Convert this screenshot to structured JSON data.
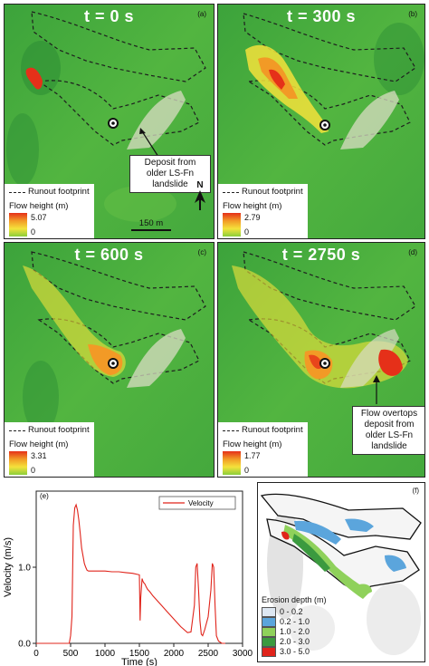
{
  "panels": [
    {
      "id": "a",
      "time": "t = 0 s",
      "letter": "(a)",
      "max": "5.07",
      "min": "0"
    },
    {
      "id": "b",
      "time": "t = 300 s",
      "letter": "(b)",
      "max": "2.79",
      "min": "0"
    },
    {
      "id": "c",
      "time": "t = 600 s",
      "letter": "(c)",
      "max": "3.31",
      "min": "0"
    },
    {
      "id": "d",
      "time": "t = 2750 s",
      "letter": "(d)",
      "max": "1.77",
      "min": "0"
    }
  ],
  "legend": {
    "runout": "Runout footprint",
    "flow_height": "Flow height (m)"
  },
  "callouts": {
    "deposit_a": [
      "Deposit from",
      "older LS-Fn",
      "landslide"
    ],
    "deposit_d": [
      "Flow overtops",
      "deposit from",
      "older LS-Fn",
      "landslide"
    ]
  },
  "scale_label": "150 m",
  "north_label": "N",
  "panel_e_letter": "(e)",
  "panel_f_letter": "(f)",
  "colors": {
    "terrain": "#4caf3a",
    "flow_high": "#e53019",
    "flow_mid": "#f29a26",
    "flow_low": "#f4e23b"
  },
  "chart_data": {
    "type": "line",
    "title": "",
    "xlabel": "Time (s)",
    "ylabel": "Velocity (m/s)",
    "xlim": [
      0,
      3000
    ],
    "ylim": [
      0,
      2.0
    ],
    "xticks": [
      0,
      500,
      1000,
      1500,
      2000,
      2500,
      3000
    ],
    "xtick_labels": [
      "0",
      "500",
      "1000",
      "1500",
      "2000",
      "2500",
      "3000"
    ],
    "yticks": [
      0,
      1.0
    ],
    "ytick_labels": [
      "0.0",
      "1.0"
    ],
    "legend_position": "top-right",
    "series": [
      {
        "name": "Velocity",
        "color": "#e0241b",
        "x": [
          0,
          480,
          500,
          520,
          540,
          560,
          580,
          600,
          620,
          640,
          660,
          680,
          700,
          720,
          740,
          760,
          780,
          800,
          850,
          900,
          1000,
          1100,
          1200,
          1300,
          1400,
          1500,
          1510,
          1520,
          1540,
          1550,
          1560,
          1580,
          1600,
          1620,
          1650,
          1700,
          1800,
          1900,
          2000,
          2100,
          2200,
          2250,
          2300,
          2320,
          2340,
          2360,
          2380,
          2400,
          2420,
          2450,
          2500,
          2540,
          2560,
          2580,
          2600,
          2620,
          2650,
          2700,
          2750
        ],
        "y": [
          0.0,
          0.0,
          0.1,
          0.35,
          1.55,
          1.78,
          1.82,
          1.75,
          1.62,
          1.45,
          1.25,
          1.15,
          1.05,
          1.0,
          0.96,
          0.95,
          0.95,
          0.95,
          0.95,
          0.95,
          0.95,
          0.94,
          0.94,
          0.93,
          0.92,
          0.9,
          0.3,
          0.6,
          0.85,
          0.82,
          0.8,
          0.78,
          0.74,
          0.71,
          0.68,
          0.62,
          0.52,
          0.42,
          0.32,
          0.22,
          0.14,
          0.15,
          0.5,
          1.0,
          1.05,
          0.7,
          0.3,
          0.12,
          0.1,
          0.18,
          0.35,
          0.7,
          1.05,
          1.0,
          0.5,
          0.1,
          0.03,
          0.0,
          0.0
        ]
      }
    ]
  },
  "erosion": {
    "title": "Erosion depth (m)",
    "classes": [
      {
        "label": "0 - 0.2",
        "color": "#dde7f2"
      },
      {
        "label": "0.2 - 1.0",
        "color": "#5ba5dc"
      },
      {
        "label": "1.0 - 2.0",
        "color": "#8fd15b"
      },
      {
        "label": "2.0 - 3.0",
        "color": "#3b9a3f"
      },
      {
        "label": "3.0 - 5.0",
        "color": "#e0241b"
      }
    ]
  }
}
